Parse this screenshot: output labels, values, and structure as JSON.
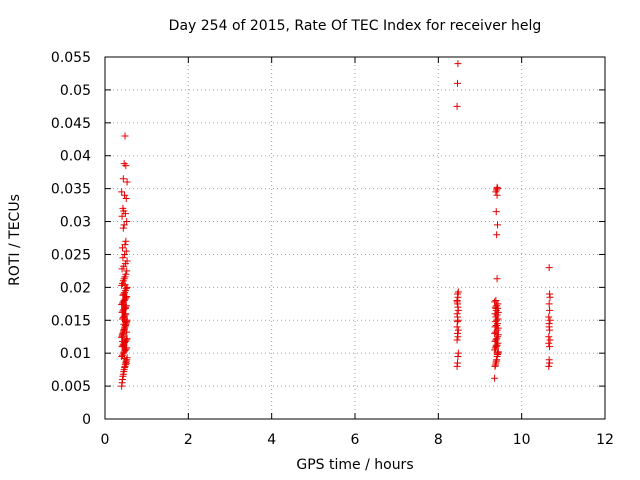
{
  "chart_data": {
    "type": "scatter",
    "title": "Day 254 of 2015, Rate Of TEC Index for receiver helg",
    "xlabel": "GPS time / hours",
    "ylabel": "ROTI / TECUs",
    "xlim": [
      0,
      12
    ],
    "ylim": [
      0,
      0.055
    ],
    "xticks": [
      0,
      2,
      4,
      6,
      8,
      10,
      12
    ],
    "yticks": [
      0,
      0.005,
      0.01,
      0.015,
      0.02,
      0.025,
      0.03,
      0.035,
      0.04,
      0.045,
      0.05,
      0.055
    ],
    "ytick_labels": [
      "0",
      "0.005",
      "0.01",
      "0.015",
      "0.02",
      "0.025",
      "0.03",
      "0.035",
      "0.04",
      "0.045",
      "0.05",
      "0.055"
    ],
    "grid": true,
    "marker": "+",
    "color": "#e60000",
    "series": [
      {
        "name": "ROTI",
        "x": [
          0.4,
          0.41,
          0.42,
          0.43,
          0.44,
          0.45,
          0.46,
          0.47,
          0.48,
          0.49,
          0.5,
          0.51,
          0.52,
          0.53,
          0.4,
          0.42,
          0.44,
          0.46,
          0.48,
          0.5,
          0.52,
          0.41,
          0.43,
          0.45,
          0.47,
          0.49,
          0.51,
          0.53,
          0.4,
          0.41,
          0.42,
          0.43,
          0.44,
          0.45,
          0.46,
          0.47,
          0.48,
          0.49,
          0.5,
          0.51,
          0.52,
          0.53,
          0.42,
          0.44,
          0.46,
          0.48,
          0.5,
          0.41,
          0.43,
          0.45,
          0.47,
          0.49,
          0.51,
          0.4,
          0.42,
          0.44,
          0.46,
          0.48,
          0.5,
          0.52,
          0.43,
          0.45,
          0.47,
          0.49,
          0.51,
          0.53,
          0.4,
          0.42,
          0.44,
          0.46,
          0.48,
          0.5,
          0.52,
          0.41,
          0.45,
          0.49,
          0.53,
          0.43,
          0.47,
          0.51,
          0.42,
          0.48,
          0.5,
          0.44,
          0.46,
          0.52,
          0.41,
          0.49,
          0.45,
          0.43,
          0.51,
          0.47,
          0.4,
          0.53,
          0.44,
          0.5,
          0.46,
          0.48,
          0.42,
          0.52,
          0.45,
          0.47,
          0.49,
          0.44,
          0.5,
          0.48,
          0.46,
          0.51,
          0.43,
          0.45,
          8.45,
          8.46,
          8.47,
          8.48,
          8.45,
          8.47,
          8.46,
          8.48,
          8.45,
          8.47,
          8.46,
          8.45,
          8.48,
          8.47,
          8.46,
          8.45,
          8.47,
          8.46,
          8.48,
          8.45,
          8.46,
          8.47,
          8.45,
          8.46,
          9.35,
          9.36,
          9.37,
          9.38,
          9.39,
          9.4,
          9.41,
          9.42,
          9.43,
          9.44,
          9.35,
          9.37,
          9.39,
          9.41,
          9.43,
          9.36,
          9.38,
          9.4,
          9.42,
          9.44,
          9.35,
          9.38,
          9.41,
          9.44,
          9.36,
          9.39,
          9.42,
          9.37,
          9.4,
          9.43,
          9.38,
          9.41,
          9.36,
          9.44,
          9.39,
          9.42,
          9.37,
          9.4,
          9.43,
          9.35,
          9.38,
          9.41,
          9.4,
          9.42,
          9.39,
          9.41,
          9.38,
          9.4,
          9.42,
          9.41,
          9.39,
          9.4,
          9.42,
          9.38,
          10.65,
          10.66,
          10.67,
          10.68,
          10.65,
          10.67,
          10.66,
          10.68,
          10.65,
          10.67,
          10.66,
          10.68,
          10.67,
          10.66,
          10.65,
          10.67,
          10.66
        ],
        "y": [
          0.005,
          0.0055,
          0.006,
          0.0065,
          0.0068,
          0.0072,
          0.0075,
          0.0078,
          0.008,
          0.0083,
          0.0086,
          0.0088,
          0.009,
          0.0093,
          0.0095,
          0.0097,
          0.01,
          0.0102,
          0.0104,
          0.0106,
          0.0108,
          0.011,
          0.0112,
          0.0114,
          0.0116,
          0.0118,
          0.012,
          0.0122,
          0.0124,
          0.0126,
          0.0128,
          0.013,
          0.0132,
          0.0134,
          0.0136,
          0.0138,
          0.014,
          0.0142,
          0.0144,
          0.0146,
          0.0148,
          0.015,
          0.0152,
          0.0154,
          0.0156,
          0.0158,
          0.016,
          0.0162,
          0.0164,
          0.0166,
          0.0168,
          0.017,
          0.0172,
          0.0174,
          0.0176,
          0.0178,
          0.018,
          0.0182,
          0.0184,
          0.0186,
          0.0188,
          0.019,
          0.0192,
          0.0195,
          0.0198,
          0.02,
          0.0203,
          0.0206,
          0.021,
          0.0213,
          0.0216,
          0.022,
          0.0225,
          0.0228,
          0.0232,
          0.0236,
          0.024,
          0.0245,
          0.025,
          0.0255,
          0.026,
          0.0265,
          0.027,
          0.029,
          0.0295,
          0.03,
          0.0308,
          0.0312,
          0.0316,
          0.032,
          0.0335,
          0.034,
          0.0345,
          0.036,
          0.0365,
          0.0385,
          0.0388,
          0.043,
          0.0118,
          0.0132,
          0.0144,
          0.0152,
          0.0168,
          0.0174,
          0.0186,
          0.0204,
          0.0092,
          0.0084,
          0.0126,
          0.0112,
          0.008,
          0.0085,
          0.0095,
          0.01,
          0.012,
          0.0125,
          0.013,
          0.0135,
          0.014,
          0.015,
          0.0155,
          0.016,
          0.0165,
          0.017,
          0.0175,
          0.018,
          0.0185,
          0.019,
          0.0193,
          0.0475,
          0.051,
          0.054,
          0.0178,
          0.0148,
          0.0062,
          0.008,
          0.0082,
          0.0085,
          0.0088,
          0.009,
          0.0095,
          0.0098,
          0.01,
          0.0102,
          0.0105,
          0.0108,
          0.011,
          0.0112,
          0.0115,
          0.0118,
          0.012,
          0.0122,
          0.0125,
          0.0128,
          0.013,
          0.0132,
          0.0135,
          0.0138,
          0.014,
          0.0142,
          0.0145,
          0.0148,
          0.015,
          0.0152,
          0.0155,
          0.0158,
          0.016,
          0.0162,
          0.0165,
          0.0168,
          0.017,
          0.0172,
          0.0175,
          0.0178,
          0.018,
          0.0213,
          0.028,
          0.0295,
          0.0315,
          0.034,
          0.0345,
          0.0348,
          0.035,
          0.0352,
          0.0112,
          0.0142,
          0.01,
          0.0168,
          0.008,
          0.009,
          0.011,
          0.012,
          0.0125,
          0.0135,
          0.0145,
          0.015,
          0.0155,
          0.0165,
          0.0175,
          0.0185,
          0.019,
          0.023,
          0.0115,
          0.0085,
          0.014
        ]
      }
    ]
  }
}
